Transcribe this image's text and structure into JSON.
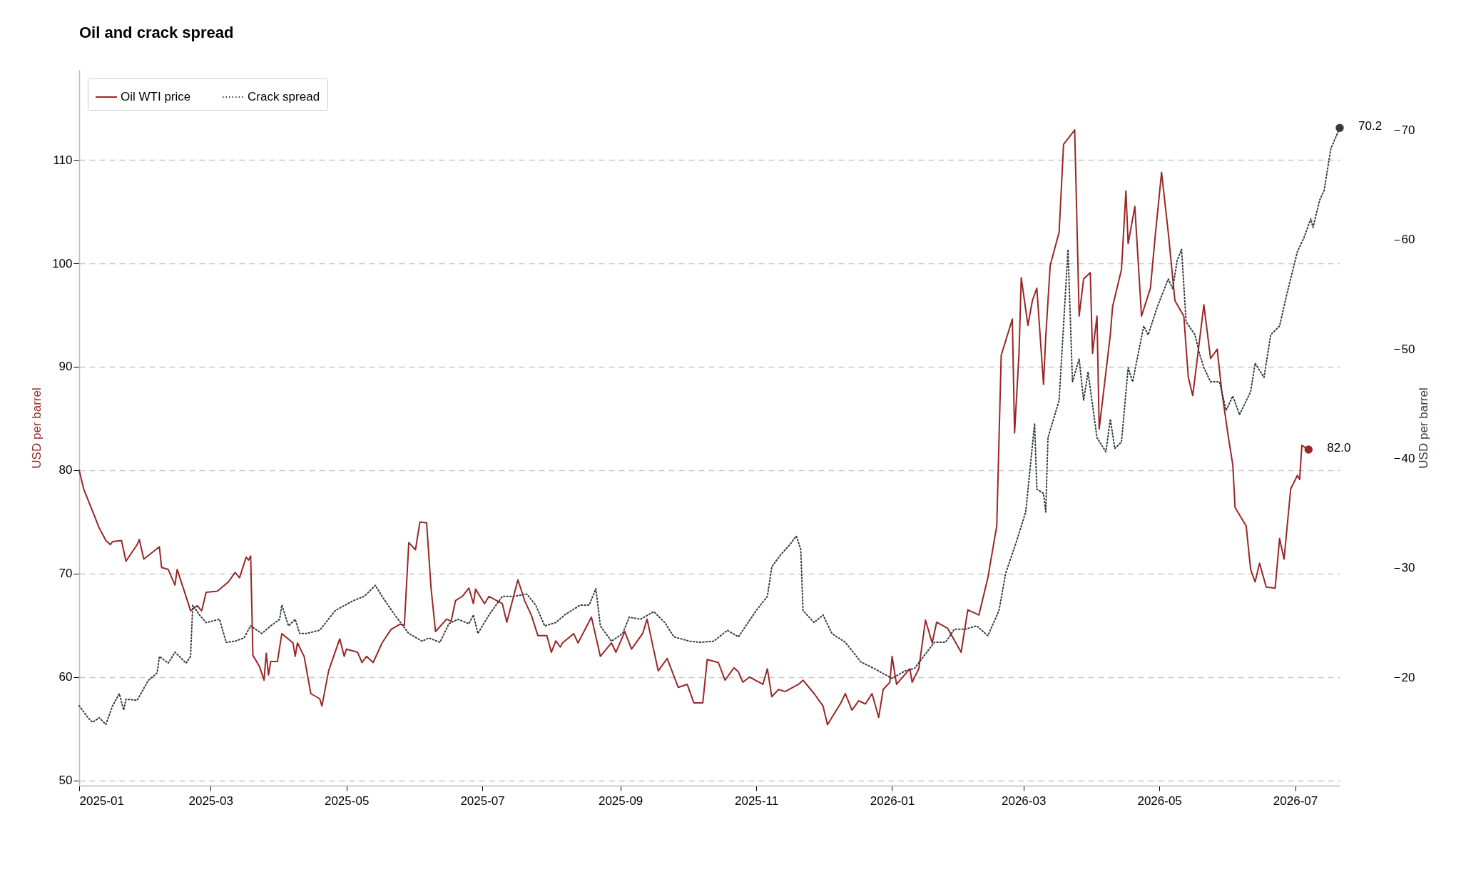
{
  "chart_data": {
    "type": "line",
    "title": "Oil and crack spread",
    "ylabel": "USD per barrel",
    "y2label": "USD per barrel",
    "xlim": [
      "2025-01-01",
      "2026-07-21"
    ],
    "xticks": [
      {
        "value": "2025-01",
        "label": "2025-01"
      },
      {
        "value": "2025-03",
        "label": "2025-03"
      },
      {
        "value": "2025-05",
        "label": "2025-05"
      },
      {
        "value": "2025-07",
        "label": "2025-07"
      },
      {
        "value": "2025-09",
        "label": "2025-09"
      },
      {
        "value": "2025-11",
        "label": "2025-11"
      },
      {
        "value": "2026-01",
        "label": "2026-01"
      },
      {
        "value": "2026-03",
        "label": "2026-03"
      },
      {
        "value": "2026-05",
        "label": "2026-05"
      },
      {
        "value": "2026-07",
        "label": "2026-07"
      }
    ],
    "ylim": [
      49.5,
      118.7
    ],
    "yticks": [
      50,
      60,
      70,
      80,
      90,
      100,
      110
    ],
    "y2lim": [
      10.1,
      75.5
    ],
    "y2ticks": [
      20,
      30,
      40,
      50,
      60,
      70
    ],
    "grid": "y",
    "legend": "top left",
    "series": [
      {
        "name": "Oil WTI price",
        "color": "#9b2626",
        "line_style": "solid",
        "axis": "y",
        "x": [
          "2025-01-01",
          "2025-01-03",
          "2025-01-08",
          "2025-01-10",
          "2025-01-13",
          "2025-01-15",
          "2025-01-16",
          "2025-01-20",
          "2025-01-22",
          "2025-01-27",
          "2025-01-28",
          "2025-01-30",
          "2025-02-06",
          "2025-02-07",
          "2025-02-10",
          "2025-02-13",
          "2025-02-14",
          "2025-02-19",
          "2025-02-20",
          "2025-02-23",
          "2025-02-25",
          "2025-02-27",
          "2025-03-04",
          "2025-03-09",
          "2025-03-12",
          "2025-03-14",
          "2025-03-17",
          "2025-03-18",
          "2025-03-19",
          "2025-03-20",
          "2025-03-23",
          "2025-03-25",
          "2025-03-26",
          "2025-03-27",
          "2025-03-28",
          "2025-03-31",
          "2025-04-02",
          "2025-04-07",
          "2025-04-08",
          "2025-04-09",
          "2025-04-12",
          "2025-04-15",
          "2025-04-19",
          "2025-04-20",
          "2025-04-23",
          "2025-04-28",
          "2025-04-30",
          "2025-05-01",
          "2025-05-06",
          "2025-05-08",
          "2025-05-10",
          "2025-05-13",
          "2025-05-17",
          "2025-05-21",
          "2025-05-25",
          "2025-05-27",
          "2025-05-29",
          "2025-06-01",
          "2025-06-03",
          "2025-06-06",
          "2025-06-08",
          "2025-06-10",
          "2025-06-15",
          "2025-06-17",
          "2025-06-19",
          "2025-06-22",
          "2025-06-25",
          "2025-06-27",
          "2025-06-28",
          "2025-07-02",
          "2025-07-04",
          "2025-07-10",
          "2025-07-12",
          "2025-07-17",
          "2025-07-20",
          "2025-07-23",
          "2025-07-26",
          "2025-07-30",
          "2025-08-01",
          "2025-08-03",
          "2025-08-05",
          "2025-08-06",
          "2025-08-11",
          "2025-08-13",
          "2025-08-19",
          "2025-08-23",
          "2025-08-28",
          "2025-08-30",
          "2025-09-03",
          "2025-09-06",
          "2025-09-11",
          "2025-09-13",
          "2025-09-18",
          "2025-09-22",
          "2025-09-27",
          "2025-10-01",
          "2025-10-04",
          "2025-10-08",
          "2025-10-10",
          "2025-10-15",
          "2025-10-18",
          "2025-10-22",
          "2025-10-24",
          "2025-10-26",
          "2025-10-29",
          "2025-11-04",
          "2025-11-06",
          "2025-11-08",
          "2025-11-11",
          "2025-11-14",
          "2025-11-20",
          "2025-11-22",
          "2025-11-27",
          "2025-12-01",
          "2025-12-03",
          "2025-12-09",
          "2025-12-11",
          "2025-12-14",
          "2025-12-17",
          "2025-12-20",
          "2025-12-23",
          "2025-12-26",
          "2025-12-28",
          "2025-12-31",
          "2026-01-01",
          "2026-01-03",
          "2026-01-09",
          "2026-01-10",
          "2026-01-13",
          "2026-01-16",
          "2026-01-19",
          "2026-01-21",
          "2026-01-26",
          "2026-02-01",
          "2026-02-04",
          "2026-02-09",
          "2026-02-13",
          "2026-02-17",
          "2026-02-19",
          "2026-02-24",
          "2026-02-25",
          "2026-02-27",
          "2026-02-28",
          "2026-03-03",
          "2026-03-05",
          "2026-03-07",
          "2026-03-10",
          "2026-03-11",
          "2026-03-13",
          "2026-03-17",
          "2026-03-19",
          "2026-03-24",
          "2026-03-26",
          "2026-03-28",
          "2026-03-31",
          "2026-04-01",
          "2026-04-03",
          "2026-04-04",
          "2026-04-09",
          "2026-04-10",
          "2026-04-14",
          "2026-04-16",
          "2026-04-17",
          "2026-04-20",
          "2026-04-23",
          "2026-04-27",
          "2026-04-29",
          "2026-05-02",
          "2026-05-05",
          "2026-05-08",
          "2026-05-12",
          "2026-05-14",
          "2026-05-16",
          "2026-05-21",
          "2026-05-24",
          "2026-05-27",
          "2026-05-29",
          "2026-06-01",
          "2026-06-03",
          "2026-06-04",
          "2026-06-09",
          "2026-06-11",
          "2026-06-13",
          "2026-06-15",
          "2026-06-18",
          "2026-06-22",
          "2026-06-24",
          "2026-06-26",
          "2026-06-29",
          "2026-07-02",
          "2026-07-03",
          "2026-07-04",
          "2026-07-07"
        ],
        "values": [
          80.0,
          78.2,
          75.5,
          74.4,
          73.2,
          72.8,
          73.1,
          73.2,
          71.2,
          72.8,
          73.3,
          71.4,
          72.6,
          70.6,
          70.4,
          68.9,
          70.4,
          67.1,
          66.4,
          66.9,
          66.4,
          68.2,
          68.3,
          69.2,
          70.1,
          69.6,
          71.6,
          71.3,
          71.7,
          62.1,
          61.0,
          59.7,
          62.3,
          60.2,
          61.5,
          61.5,
          64.2,
          63.3,
          62.0,
          63.3,
          62.0,
          58.4,
          57.9,
          57.2,
          60.6,
          63.7,
          62.0,
          62.7,
          62.4,
          61.4,
          62.0,
          61.4,
          63.3,
          64.6,
          65.1,
          65.0,
          73.0,
          72.3,
          75.0,
          74.9,
          68.6,
          64.4,
          65.6,
          65.4,
          67.4,
          67.8,
          68.6,
          67.1,
          68.5,
          67.1,
          67.8,
          67.1,
          65.3,
          69.4,
          67.4,
          66.0,
          64.0,
          64.0,
          62.4,
          63.5,
          62.9,
          63.3,
          64.2,
          63.3,
          65.8,
          62.0,
          63.3,
          62.4,
          64.4,
          62.7,
          64.2,
          65.6,
          60.6,
          61.8,
          59.0,
          59.3,
          57.5,
          57.5,
          61.7,
          61.4,
          59.7,
          60.9,
          60.5,
          59.5,
          60.0,
          59.3,
          60.8,
          58.1,
          58.8,
          58.6,
          59.3,
          59.7,
          58.4,
          57.2,
          55.4,
          57.5,
          58.4,
          56.8,
          57.7,
          57.4,
          58.4,
          56.1,
          58.8,
          59.5,
          62.0,
          59.3,
          60.8,
          59.5,
          60.8,
          65.5,
          63.3,
          65.3,
          64.7,
          62.4,
          66.5,
          66.0,
          69.6,
          74.6,
          91.1,
          94.6,
          83.6,
          91.3,
          98.6,
          94.0,
          96.4,
          97.6,
          88.3,
          92.9,
          99.8,
          103.0,
          111.5,
          112.9,
          94.9,
          98.5,
          99.1,
          91.3,
          94.9,
          84.0,
          93.1,
          95.8,
          99.4,
          107.0,
          101.9,
          105.5,
          94.9,
          97.6,
          102.3,
          108.8,
          103.0,
          96.4,
          94.9,
          89.0,
          87.2,
          96.0,
          90.8,
          91.7,
          87.7,
          83.2,
          80.5,
          76.4,
          74.6,
          70.4,
          69.2,
          71.0,
          68.7,
          68.6,
          73.4,
          71.4,
          78.2,
          79.5,
          79.1,
          82.4,
          82.0
        ],
        "value_labels": [
          null,
          null,
          null,
          null,
          null,
          null,
          null,
          null,
          null,
          null,
          null,
          null,
          null,
          null,
          null,
          null,
          null,
          null,
          null,
          null,
          null,
          null,
          null,
          null,
          null,
          null,
          null,
          null,
          null,
          null,
          null,
          null,
          null,
          null,
          null,
          null,
          null,
          null,
          null,
          null,
          null,
          null,
          null,
          null,
          null,
          null,
          null,
          null,
          null,
          null,
          null,
          null,
          null,
          null,
          null,
          null,
          null,
          null,
          null,
          null,
          null,
          null,
          null,
          null,
          null,
          null,
          null,
          null,
          null,
          null,
          null,
          null,
          null,
          null,
          null,
          null,
          null,
          null,
          null,
          null,
          null,
          null,
          null,
          null,
          null,
          null,
          null,
          null,
          null,
          null,
          null,
          null,
          null,
          null,
          null,
          null,
          null,
          null,
          null,
          null,
          null,
          null,
          null,
          null,
          null,
          null,
          null,
          null,
          null,
          null,
          null,
          null,
          null,
          null,
          null,
          null,
          null,
          null,
          null,
          null,
          null,
          null,
          null,
          null,
          null,
          null,
          null,
          null,
          null,
          null,
          null,
          null,
          null,
          null,
          null,
          null,
          null,
          null,
          null,
          null,
          null,
          null,
          null,
          null,
          null,
          null,
          null,
          null,
          null,
          null,
          null,
          null,
          null,
          null,
          null,
          null,
          null,
          null,
          null,
          null,
          null,
          null,
          null,
          null,
          null,
          null,
          null,
          null,
          null,
          null,
          null,
          null,
          null,
          null,
          null,
          null,
          null,
          null,
          null,
          null,
          null,
          null,
          null,
          null,
          null,
          null,
          null,
          null,
          null,
          null,
          null,
          null,
          "82.0"
        ]
      },
      {
        "name": "Crack spread",
        "color": "#343a40",
        "line_style": "dotted",
        "axis": "y2",
        "x": [
          "2025-01-01",
          "2025-01-05",
          "2025-01-07",
          "2025-01-10",
          "2025-01-13",
          "2025-01-16",
          "2025-01-19",
          "2025-01-21",
          "2025-01-22",
          "2025-01-27",
          "2025-02-01",
          "2025-02-05",
          "2025-02-06",
          "2025-02-10",
          "2025-02-13",
          "2025-02-15",
          "2025-02-18",
          "2025-02-20",
          "2025-02-21",
          "2025-02-24",
          "2025-02-27",
          "2025-03-05",
          "2025-03-08",
          "2025-03-12",
          "2025-03-16",
          "2025-03-19",
          "2025-03-24",
          "2025-03-28",
          "2025-04-01",
          "2025-04-02",
          "2025-04-05",
          "2025-04-08",
          "2025-04-10",
          "2025-04-13",
          "2025-04-19",
          "2025-04-26",
          "2025-05-04",
          "2025-05-09",
          "2025-05-14",
          "2025-05-17",
          "2025-05-22",
          "2025-05-29",
          "2025-06-04",
          "2025-06-07",
          "2025-06-12",
          "2025-06-16",
          "2025-06-20",
          "2025-06-25",
          "2025-06-27",
          "2025-06-29",
          "2025-07-04",
          "2025-07-10",
          "2025-07-15",
          "2025-07-21",
          "2025-07-25",
          "2025-07-29",
          "2025-08-03",
          "2025-08-07",
          "2025-08-14",
          "2025-08-18",
          "2025-08-21",
          "2025-08-23",
          "2025-08-28",
          "2025-09-02",
          "2025-09-05",
          "2025-09-10",
          "2025-09-16",
          "2025-09-21",
          "2025-09-25",
          "2025-10-02",
          "2025-10-07",
          "2025-10-13",
          "2025-10-19",
          "2025-10-24",
          "2025-10-28",
          "2025-11-01",
          "2025-11-06",
          "2025-11-08",
          "2025-11-12",
          "2025-11-16",
          "2025-11-19",
          "2025-11-21",
          "2025-11-22",
          "2025-11-27",
          "2025-12-01",
          "2025-12-05",
          "2025-12-11",
          "2025-12-18",
          "2025-12-24",
          "2026-01-01",
          "2026-01-07",
          "2026-01-11",
          "2026-01-20",
          "2026-01-25",
          "2026-01-29",
          "2026-02-03",
          "2026-02-08",
          "2026-02-13",
          "2026-02-18",
          "2026-02-21",
          "2026-02-26",
          "2026-03-02",
          "2026-03-06",
          "2026-03-07",
          "2026-03-10",
          "2026-03-11",
          "2026-03-12",
          "2026-03-17",
          "2026-03-21",
          "2026-03-23",
          "2026-03-26",
          "2026-03-28",
          "2026-03-30",
          "2026-04-03",
          "2026-04-07",
          "2026-04-09",
          "2026-04-11",
          "2026-04-14",
          "2026-04-17",
          "2026-04-19",
          "2026-04-24",
          "2026-04-26",
          "2026-04-30",
          "2026-05-05",
          "2026-05-07",
          "2026-05-09",
          "2026-05-11",
          "2026-05-13",
          "2026-05-17",
          "2026-05-19",
          "2026-05-21",
          "2026-05-24",
          "2026-05-28",
          "2026-05-31",
          "2026-06-03",
          "2026-06-06",
          "2026-06-11",
          "2026-06-13",
          "2026-06-17",
          "2026-06-20",
          "2026-06-24",
          "2026-06-27",
          "2026-07-02",
          "2026-07-05",
          "2026-07-08",
          "2026-07-09",
          "2026-07-12",
          "2026-07-14",
          "2026-07-17",
          "2026-07-21"
        ],
        "values": [
          17.4,
          16.3,
          15.9,
          16.3,
          15.7,
          17.4,
          18.5,
          17.0,
          18.0,
          17.9,
          19.7,
          20.4,
          21.9,
          21.3,
          22.3,
          21.9,
          21.3,
          21.9,
          26.6,
          25.7,
          25.0,
          25.3,
          23.2,
          23.3,
          23.6,
          24.7,
          24.0,
          24.7,
          25.3,
          26.6,
          24.7,
          25.3,
          24.0,
          24.0,
          24.3,
          26.1,
          27.0,
          27.4,
          28.4,
          27.4,
          25.9,
          24.0,
          23.3,
          23.6,
          23.2,
          24.9,
          25.3,
          24.9,
          25.7,
          24.0,
          25.7,
          27.4,
          27.4,
          27.6,
          26.6,
          24.7,
          25.0,
          25.7,
          26.6,
          26.6,
          28.1,
          24.7,
          23.3,
          24.0,
          25.5,
          25.3,
          26.0,
          25.0,
          23.7,
          23.3,
          23.2,
          23.3,
          24.3,
          23.7,
          24.9,
          26.1,
          27.4,
          30.1,
          31.2,
          32.1,
          32.9,
          31.7,
          26.1,
          25.0,
          25.7,
          24.0,
          23.2,
          21.4,
          20.8,
          19.9,
          20.6,
          20.8,
          23.2,
          23.2,
          24.4,
          24.4,
          24.7,
          23.8,
          26.1,
          29.5,
          32.5,
          35.1,
          43.2,
          37.2,
          36.8,
          35.1,
          41.9,
          45.3,
          59.1,
          47.0,
          49.1,
          45.3,
          47.9,
          41.9,
          40.6,
          43.6,
          40.9,
          41.5,
          48.3,
          47.0,
          52.1,
          51.3,
          53.8,
          56.4,
          55.5,
          58.1,
          59.1,
          52.5,
          51.3,
          49.6,
          48.3,
          47.0,
          47.0,
          44.4,
          45.7,
          44.0,
          46.1,
          48.7,
          47.4,
          51.3,
          52.1,
          54.8,
          58.9,
          60.2,
          61.9,
          61.1,
          63.6,
          64.5,
          68.3,
          70.2
        ],
        "value_labels": [
          null,
          null,
          null,
          null,
          null,
          null,
          null,
          null,
          null,
          null,
          null,
          null,
          null,
          null,
          null,
          null,
          null,
          null,
          null,
          null,
          null,
          null,
          null,
          null,
          null,
          null,
          null,
          null,
          null,
          null,
          null,
          null,
          null,
          null,
          null,
          null,
          null,
          null,
          null,
          null,
          null,
          null,
          null,
          null,
          null,
          null,
          null,
          null,
          null,
          null,
          null,
          null,
          null,
          null,
          null,
          null,
          null,
          null,
          null,
          null,
          null,
          null,
          null,
          null,
          null,
          null,
          null,
          null,
          null,
          null,
          null,
          null,
          null,
          null,
          null,
          null,
          null,
          null,
          null,
          null,
          null,
          null,
          null,
          null,
          null,
          null,
          null,
          null,
          null,
          null,
          null,
          null,
          null,
          null,
          null,
          null,
          null,
          null,
          null,
          null,
          null,
          null,
          null,
          null,
          null,
          null,
          null,
          null,
          null,
          null,
          null,
          null,
          null,
          null,
          null,
          null,
          null,
          null,
          null,
          null,
          null,
          null,
          null,
          null,
          null,
          null,
          null,
          null,
          null,
          null,
          null,
          null,
          null,
          null,
          null,
          null,
          null,
          null,
          null,
          null,
          null,
          null,
          null,
          null,
          null,
          null,
          null,
          null,
          null,
          "70.2"
        ]
      }
    ]
  }
}
